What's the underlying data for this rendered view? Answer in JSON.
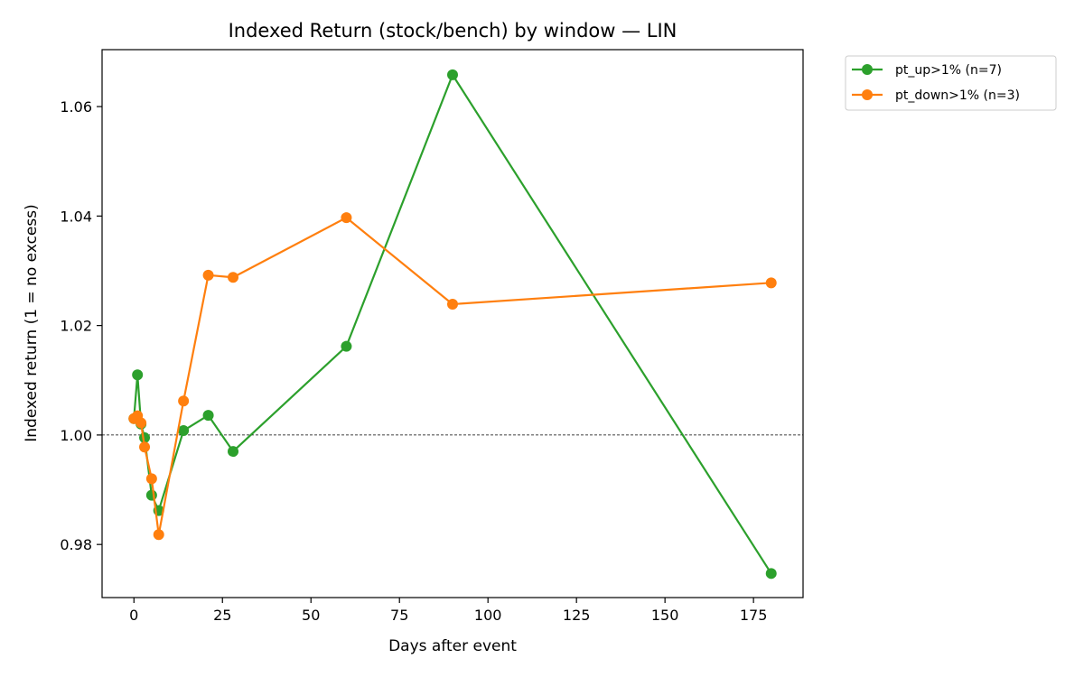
{
  "chart_data": {
    "type": "line",
    "title": "Indexed Return (stock/bench) by window — LIN",
    "xlabel": "Days after event",
    "ylabel": "Indexed return (1 = no excess)",
    "xlim": [
      -9,
      189
    ],
    "ylim": [
      0.9703,
      1.0704
    ],
    "xticks": [
      0,
      25,
      50,
      75,
      100,
      125,
      150,
      175
    ],
    "yticks": [
      0.98,
      1.0,
      1.02,
      1.04,
      1.06
    ],
    "ytick_labels": [
      "0.98",
      "1.00",
      "1.02",
      "1.04",
      "1.06"
    ],
    "reference_line": {
      "y": 1.0,
      "style": "dashed",
      "color": "#000000"
    },
    "grid": false,
    "legend": {
      "placement": "outside-top-right"
    },
    "series": [
      {
        "name": "pt_up>1% (n=7)",
        "color": "#2ca02c",
        "x": [
          0,
          1,
          2,
          3,
          5,
          7,
          14,
          21,
          28,
          60,
          90,
          180
        ],
        "y": [
          1.003,
          1.011,
          1.002,
          0.9995,
          0.989,
          0.9862,
          1.0008,
          1.0036,
          0.997,
          1.0162,
          1.0658,
          0.9747
        ]
      },
      {
        "name": "pt_down>1% (n=3)",
        "color": "#ff7f0e",
        "x": [
          0,
          1,
          2,
          3,
          5,
          7,
          14,
          21,
          28,
          60,
          90,
          180
        ],
        "y": [
          1.003,
          1.0035,
          1.0022,
          0.9978,
          0.992,
          0.9818,
          1.0062,
          1.0292,
          1.0288,
          1.0397,
          1.0239,
          1.0278
        ]
      }
    ]
  }
}
